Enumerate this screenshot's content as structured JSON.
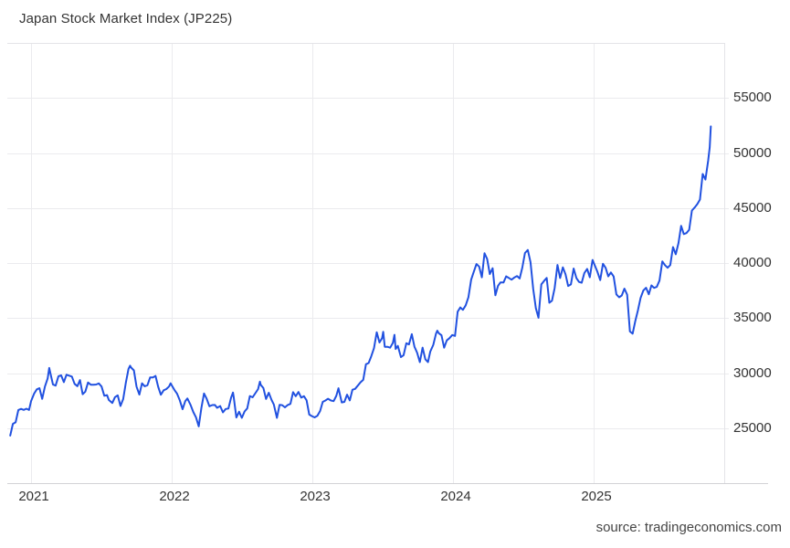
{
  "title": "Japan Stock Market Index (JP225)",
  "source": "source: tradingeconomics.com",
  "chart_data": {
    "type": "line",
    "series_name": "JP225",
    "title": "Japan Stock Market Index (JP225)",
    "line_color": "#2151e0",
    "grid_color": "#ebebee",
    "border_color": "#e4e4e8",
    "axis_line_color": "#d2d2d6",
    "label_color": "#333333",
    "legend": "none",
    "grid": "on",
    "x_ticks": [
      2021,
      2022,
      2023,
      2024,
      2025
    ],
    "x_tick_labels": [
      "2021",
      "2022",
      "2023",
      "2024",
      "2025"
    ],
    "y_ticks": [
      25000,
      30000,
      35000,
      40000,
      45000,
      50000,
      55000
    ],
    "y_tick_labels": [
      "25000",
      "30000",
      "35000",
      "40000",
      "45000",
      "50000",
      "55000"
    ],
    "x_range": [
      2020.82,
      2025.93
    ],
    "ylim": [
      20000,
      60000
    ],
    "data": [
      [
        2020.852,
        24325
      ],
      [
        2020.871,
        25386
      ],
      [
        2020.89,
        25527
      ],
      [
        2020.91,
        26645
      ],
      [
        2020.929,
        26751
      ],
      [
        2020.948,
        26653
      ],
      [
        2020.967,
        26763
      ],
      [
        2020.986,
        26657
      ],
      [
        2021.0,
        27444
      ],
      [
        2021.022,
        28139
      ],
      [
        2021.041,
        28519
      ],
      [
        2021.06,
        28631
      ],
      [
        2021.079,
        27663
      ],
      [
        2021.099,
        28779
      ],
      [
        2021.118,
        29520
      ],
      [
        2021.129,
        30467
      ],
      [
        2021.137,
        30018
      ],
      [
        2021.156,
        28966
      ],
      [
        2021.175,
        28864
      ],
      [
        2021.195,
        29718
      ],
      [
        2021.214,
        29792
      ],
      [
        2021.233,
        29177
      ],
      [
        2021.252,
        29854
      ],
      [
        2021.271,
        29768
      ],
      [
        2021.29,
        29683
      ],
      [
        2021.31,
        29020
      ],
      [
        2021.329,
        28813
      ],
      [
        2021.348,
        29358
      ],
      [
        2021.367,
        28084
      ],
      [
        2021.386,
        28318
      ],
      [
        2021.405,
        29149
      ],
      [
        2021.425,
        28942
      ],
      [
        2021.444,
        28949
      ],
      [
        2021.463,
        28964
      ],
      [
        2021.482,
        29066
      ],
      [
        2021.501,
        28783
      ],
      [
        2021.521,
        27940
      ],
      [
        2021.54,
        28003
      ],
      [
        2021.553,
        27548
      ],
      [
        2021.578,
        27284
      ],
      [
        2021.597,
        27820
      ],
      [
        2021.616,
        27977
      ],
      [
        2021.636,
        27013
      ],
      [
        2021.655,
        27641
      ],
      [
        2021.674,
        29128
      ],
      [
        2021.693,
        30382
      ],
      [
        2021.704,
        30670
      ],
      [
        2021.712,
        30500
      ],
      [
        2021.731,
        30249
      ],
      [
        2021.75,
        28771
      ],
      [
        2021.77,
        28049
      ],
      [
        2021.789,
        29069
      ],
      [
        2021.808,
        28805
      ],
      [
        2021.827,
        28893
      ],
      [
        2021.847,
        29612
      ],
      [
        2021.866,
        29610
      ],
      [
        2021.885,
        29746
      ],
      [
        2021.904,
        28752
      ],
      [
        2021.923,
        28030
      ],
      [
        2021.943,
        28438
      ],
      [
        2021.962,
        28546
      ],
      [
        2021.981,
        28783
      ],
      [
        2021.992,
        29069
      ],
      [
        2022.019,
        28479
      ],
      [
        2022.038,
        28124
      ],
      [
        2022.058,
        27522
      ],
      [
        2022.077,
        26717
      ],
      [
        2022.096,
        27440
      ],
      [
        2022.112,
        27696
      ],
      [
        2022.134,
        27122
      ],
      [
        2022.153,
        26477
      ],
      [
        2022.173,
        25985
      ],
      [
        2022.192,
        25162
      ],
      [
        2022.211,
        26827
      ],
      [
        2022.23,
        28149
      ],
      [
        2022.249,
        27666
      ],
      [
        2022.268,
        26986
      ],
      [
        2022.288,
        27093
      ],
      [
        2022.307,
        27105
      ],
      [
        2022.323,
        26848
      ],
      [
        2022.345,
        27004
      ],
      [
        2022.364,
        26428
      ],
      [
        2022.384,
        26739
      ],
      [
        2022.403,
        26782
      ],
      [
        2022.422,
        27762
      ],
      [
        2022.436,
        28234
      ],
      [
        2022.441,
        27824
      ],
      [
        2022.46,
        25963
      ],
      [
        2022.479,
        26492
      ],
      [
        2022.499,
        25936
      ],
      [
        2022.518,
        26517
      ],
      [
        2022.537,
        26788
      ],
      [
        2022.556,
        27915
      ],
      [
        2022.575,
        27802
      ],
      [
        2022.595,
        28175
      ],
      [
        2022.614,
        28547
      ],
      [
        2022.627,
        29223
      ],
      [
        2022.633,
        28930
      ],
      [
        2022.652,
        28641
      ],
      [
        2022.671,
        27651
      ],
      [
        2022.69,
        28215
      ],
      [
        2022.71,
        27568
      ],
      [
        2022.726,
        27154
      ],
      [
        2022.748,
        25937
      ],
      [
        2022.767,
        27116
      ],
      [
        2022.786,
        27091
      ],
      [
        2022.805,
        26891
      ],
      [
        2022.825,
        27105
      ],
      [
        2022.844,
        27200
      ],
      [
        2022.863,
        28264
      ],
      [
        2022.882,
        27900
      ],
      [
        2022.901,
        28283
      ],
      [
        2022.921,
        27778
      ],
      [
        2022.94,
        27901
      ],
      [
        2022.959,
        27527
      ],
      [
        2022.978,
        26235
      ],
      [
        2022.997,
        26095
      ],
      [
        2023.016,
        25974
      ],
      [
        2023.036,
        26119
      ],
      [
        2023.055,
        26553
      ],
      [
        2023.074,
        27383
      ],
      [
        2023.093,
        27510
      ],
      [
        2023.112,
        27671
      ],
      [
        2023.132,
        27513
      ],
      [
        2023.151,
        27453
      ],
      [
        2023.17,
        27927
      ],
      [
        2023.186,
        28623
      ],
      [
        2023.209,
        27334
      ],
      [
        2023.228,
        27385
      ],
      [
        2023.247,
        28041
      ],
      [
        2023.266,
        27518
      ],
      [
        2023.285,
        28493
      ],
      [
        2023.304,
        28564
      ],
      [
        2023.323,
        28856
      ],
      [
        2023.342,
        29158
      ],
      [
        2023.362,
        29388
      ],
      [
        2023.381,
        30808
      ],
      [
        2023.4,
        30916
      ],
      [
        2023.419,
        31524
      ],
      [
        2023.438,
        32265
      ],
      [
        2023.458,
        33706
      ],
      [
        2023.477,
        32781
      ],
      [
        2023.496,
        33189
      ],
      [
        2023.504,
        33753
      ],
      [
        2023.515,
        32388
      ],
      [
        2023.534,
        32391
      ],
      [
        2023.553,
        32304
      ],
      [
        2023.573,
        32759
      ],
      [
        2023.584,
        33476
      ],
      [
        2023.592,
        32193
      ],
      [
        2023.608,
        32474
      ],
      [
        2023.63,
        31451
      ],
      [
        2023.649,
        31624
      ],
      [
        2023.668,
        32711
      ],
      [
        2023.687,
        32607
      ],
      [
        2023.707,
        33533
      ],
      [
        2023.726,
        32402
      ],
      [
        2023.745,
        31858
      ],
      [
        2023.764,
        30995
      ],
      [
        2023.784,
        32316
      ],
      [
        2023.803,
        31259
      ],
      [
        2023.822,
        30992
      ],
      [
        2023.838,
        31950
      ],
      [
        2023.86,
        32568
      ],
      [
        2023.879,
        33585
      ],
      [
        2023.888,
        33853
      ],
      [
        2023.899,
        33626
      ],
      [
        2023.918,
        33432
      ],
      [
        2023.937,
        32308
      ],
      [
        2023.956,
        32971
      ],
      [
        2023.975,
        33169
      ],
      [
        2023.995,
        33464
      ],
      [
        2024.014,
        33377
      ],
      [
        2024.033,
        35577
      ],
      [
        2024.052,
        35963
      ],
      [
        2024.071,
        35751
      ],
      [
        2024.09,
        36158
      ],
      [
        2024.11,
        36897
      ],
      [
        2024.129,
        38487
      ],
      [
        2024.145,
        39098
      ],
      [
        2024.167,
        39911
      ],
      [
        2024.186,
        39688
      ],
      [
        2024.205,
        38708
      ],
      [
        2024.224,
        40888
      ],
      [
        2024.243,
        40369
      ],
      [
        2024.262,
        38992
      ],
      [
        2024.282,
        39524
      ],
      [
        2024.301,
        37068
      ],
      [
        2024.32,
        37935
      ],
      [
        2024.337,
        38236
      ],
      [
        2024.359,
        38229
      ],
      [
        2024.378,
        38787
      ],
      [
        2024.397,
        38646
      ],
      [
        2024.416,
        38487
      ],
      [
        2024.436,
        38684
      ],
      [
        2024.455,
        38814
      ],
      [
        2024.474,
        38596
      ],
      [
        2024.493,
        39583
      ],
      [
        2024.512,
        40912
      ],
      [
        2024.532,
        41190
      ],
      [
        2024.551,
        40063
      ],
      [
        2024.57,
        37667
      ],
      [
        2024.589,
        35909
      ],
      [
        2024.608,
        35025
      ],
      [
        2024.628,
        38062
      ],
      [
        2024.647,
        38364
      ],
      [
        2024.666,
        38648
      ],
      [
        2024.685,
        36391
      ],
      [
        2024.704,
        36582
      ],
      [
        2024.723,
        37724
      ],
      [
        2024.743,
        39829
      ],
      [
        2024.762,
        38636
      ],
      [
        2024.781,
        39606
      ],
      [
        2024.8,
        38982
      ],
      [
        2024.819,
        37914
      ],
      [
        2024.838,
        38054
      ],
      [
        2024.858,
        39500
      ],
      [
        2024.877,
        38643
      ],
      [
        2024.896,
        38284
      ],
      [
        2024.915,
        38208
      ],
      [
        2024.934,
        39091
      ],
      [
        2024.954,
        39470
      ],
      [
        2024.973,
        38702
      ],
      [
        2024.992,
        40281
      ],
      [
        2025.027,
        39190
      ],
      [
        2025.047,
        38451
      ],
      [
        2025.066,
        39932
      ],
      [
        2025.085,
        39572
      ],
      [
        2025.104,
        38787
      ],
      [
        2025.123,
        39149
      ],
      [
        2025.142,
        38776
      ],
      [
        2025.162,
        37156
      ],
      [
        2025.181,
        36887
      ],
      [
        2025.2,
        37053
      ],
      [
        2025.219,
        37677
      ],
      [
        2025.238,
        37120
      ],
      [
        2025.258,
        33781
      ],
      [
        2025.277,
        33586
      ],
      [
        2025.296,
        34731
      ],
      [
        2025.315,
        35706
      ],
      [
        2025.334,
        36830
      ],
      [
        2025.353,
        37503
      ],
      [
        2025.373,
        37754
      ],
      [
        2025.392,
        37160
      ],
      [
        2025.411,
        37965
      ],
      [
        2025.43,
        37742
      ],
      [
        2025.449,
        37834
      ],
      [
        2025.468,
        38403
      ],
      [
        2025.488,
        40150
      ],
      [
        2025.507,
        39811
      ],
      [
        2025.526,
        39570
      ],
      [
        2025.545,
        39819
      ],
      [
        2025.564,
        41456
      ],
      [
        2025.584,
        40800
      ],
      [
        2025.603,
        41820
      ],
      [
        2025.622,
        43378
      ],
      [
        2025.641,
        42633
      ],
      [
        2025.66,
        42718
      ],
      [
        2025.679,
        43018
      ],
      [
        2025.699,
        44768
      ],
      [
        2025.718,
        45045
      ],
      [
        2025.737,
        45355
      ],
      [
        2025.756,
        45770
      ],
      [
        2025.775,
        48088
      ],
      [
        2025.795,
        47582
      ],
      [
        2025.814,
        49299
      ],
      [
        2025.825,
        50512
      ],
      [
        2025.833,
        52411
      ]
    ]
  }
}
